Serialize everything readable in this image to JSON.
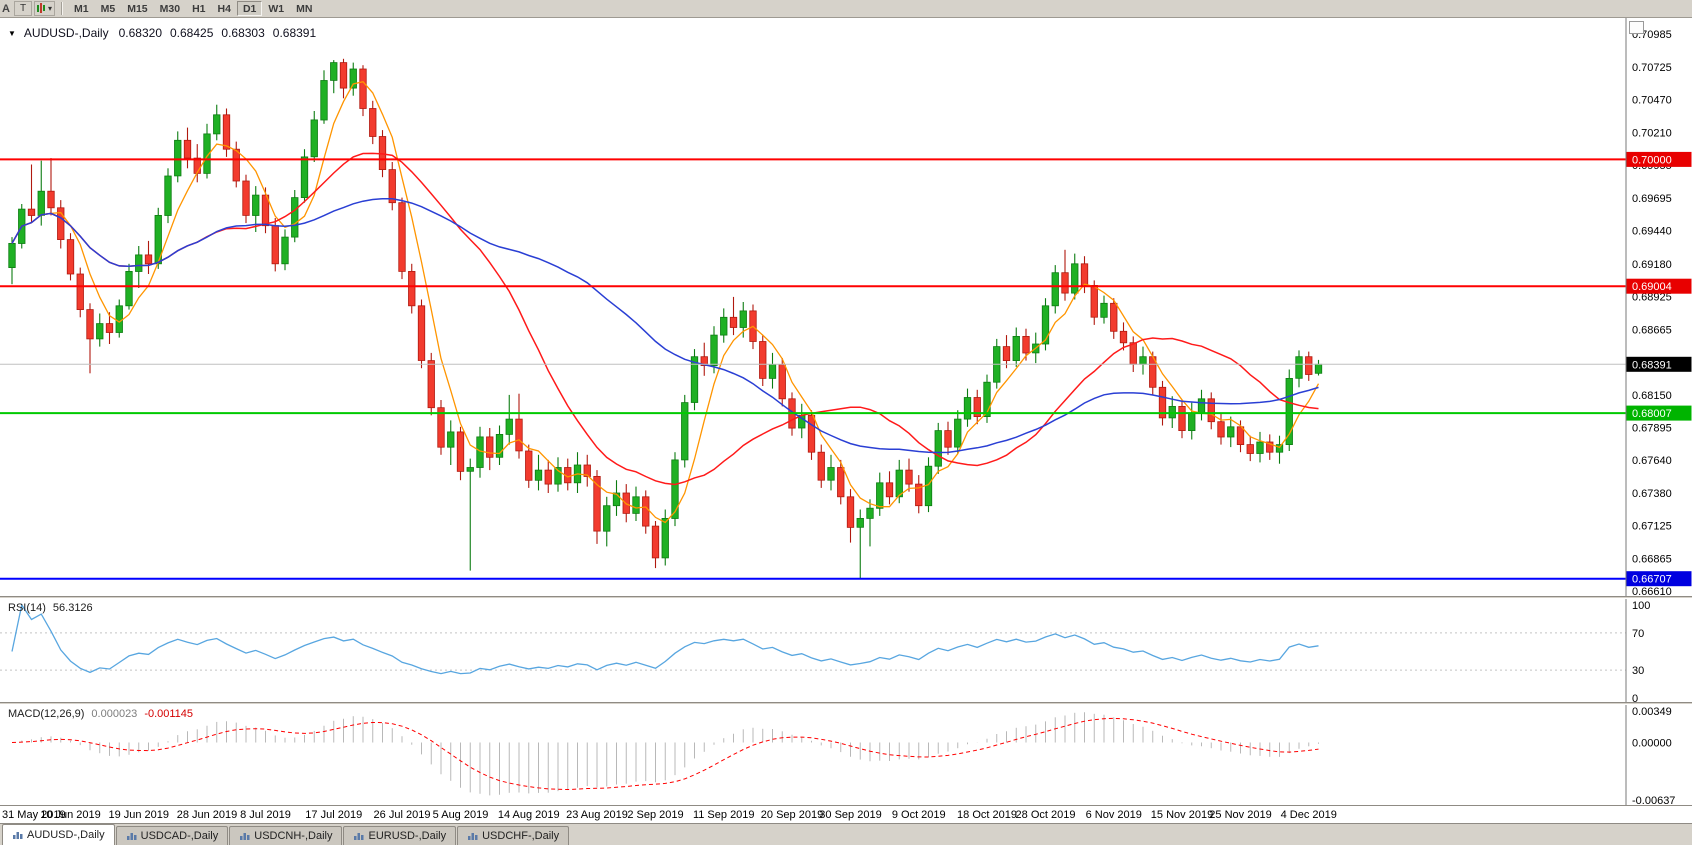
{
  "toolbar": {
    "left_label": "A",
    "t_button": "T",
    "dropdown_glyph": "▾",
    "timeframes": [
      "M1",
      "M5",
      "M15",
      "M30",
      "H1",
      "H4",
      "D1",
      "W1",
      "MN"
    ],
    "active_timeframe": "D1"
  },
  "chart_header": {
    "collapse_glyph": "▼",
    "symbol": "AUDUSD-,Daily",
    "open": "0.68320",
    "high": "0.68425",
    "low": "0.68303",
    "close": "0.68391"
  },
  "price_axis": {
    "labels": [
      "0.70985",
      "0.70725",
      "0.70470",
      "0.70210",
      "0.69955",
      "0.69695",
      "0.69440",
      "0.69180",
      "0.68925",
      "0.68665",
      "0.68405",
      "0.68150",
      "0.67895",
      "0.67640",
      "0.67380",
      "0.67125",
      "0.66865",
      "0.66610"
    ]
  },
  "hlines": [
    {
      "price": 0.7,
      "label": "0.70000",
      "tag_color": "#e80000",
      "line_color": "#ff0000",
      "line_width": 2
    },
    {
      "price": 0.69004,
      "label": "0.69004",
      "tag_color": "#e80000",
      "line_color": "#ff0000",
      "line_width": 2
    },
    {
      "price": 0.68007,
      "label": "0.68007",
      "tag_color": "#00b400",
      "line_color": "#00ca00",
      "line_width": 2
    },
    {
      "price": 0.66707,
      "label": "0.66707",
      "tag_color": "#0000e0",
      "line_color": "#0000ff",
      "line_width": 2
    },
    {
      "price": 0.68391,
      "label": "0.68391",
      "tag_color": "#000000",
      "line_color": "#c0c0c0",
      "line_width": 1
    }
  ],
  "chart_data": {
    "type": "candlestick",
    "symbol": "AUDUSD",
    "timeframe": "Daily",
    "title": "AUDUSD-,Daily",
    "price_range": [
      0.6661,
      0.70985
    ],
    "up_color": "#1fb024",
    "up_stroke": "#0c7c11",
    "down_color": "#f23b2e",
    "down_stroke": "#b0190f",
    "moving_averages": [
      {
        "name": "fast-lwma",
        "period": 5,
        "color": "#ff9500",
        "width": 1.3
      },
      {
        "name": "mid-ma",
        "period": 20,
        "color": "#ff1a1a",
        "width": 1.5
      },
      {
        "name": "slow-ma",
        "period": 44,
        "color": "#2a3fd4",
        "width": 1.5
      }
    ],
    "date_ticks": [
      {
        "i": 0,
        "label": "31 May 2019"
      },
      {
        "i": 6,
        "label": "10 Jun 2019"
      },
      {
        "i": 13,
        "label": "19 Jun 2019"
      },
      {
        "i": 20,
        "label": "28 Jun 2019"
      },
      {
        "i": 26,
        "label": "8 Jul 2019"
      },
      {
        "i": 33,
        "label": "17 Jul 2019"
      },
      {
        "i": 40,
        "label": "26 Jul 2019"
      },
      {
        "i": 46,
        "label": "5 Aug 2019"
      },
      {
        "i": 53,
        "label": "14 Aug 2019"
      },
      {
        "i": 60,
        "label": "23 Aug 2019"
      },
      {
        "i": 66,
        "label": "2 Sep 2019"
      },
      {
        "i": 73,
        "label": "11 Sep 2019"
      },
      {
        "i": 80,
        "label": "20 Sep 2019"
      },
      {
        "i": 86,
        "label": "30 Sep 2019"
      },
      {
        "i": 93,
        "label": "9 Oct 2019"
      },
      {
        "i": 100,
        "label": "18 Oct 2019"
      },
      {
        "i": 106,
        "label": "28 Oct 2019"
      },
      {
        "i": 113,
        "label": "6 Nov 2019"
      },
      {
        "i": 120,
        "label": "15 Nov 2019"
      },
      {
        "i": 126,
        "label": "25 Nov 2019"
      },
      {
        "i": 133,
        "label": "4 Dec 2019"
      }
    ],
    "ohlc": [
      [
        0.6915,
        0.6939,
        0.6902,
        0.6934
      ],
      [
        0.6934,
        0.6965,
        0.693,
        0.6961
      ],
      [
        0.6961,
        0.6996,
        0.695,
        0.6956
      ],
      [
        0.6956,
        0.6999,
        0.6948,
        0.6975
      ],
      [
        0.6975,
        0.7001,
        0.6956,
        0.6962
      ],
      [
        0.6962,
        0.6968,
        0.693,
        0.6937
      ],
      [
        0.6937,
        0.6942,
        0.6905,
        0.691
      ],
      [
        0.691,
        0.6915,
        0.6876,
        0.6882
      ],
      [
        0.6882,
        0.6887,
        0.6832,
        0.6859
      ],
      [
        0.6859,
        0.6879,
        0.6853,
        0.6871
      ],
      [
        0.6871,
        0.688,
        0.6855,
        0.6864
      ],
      [
        0.6864,
        0.689,
        0.686,
        0.6885
      ],
      [
        0.6885,
        0.6918,
        0.6882,
        0.6912
      ],
      [
        0.6912,
        0.6932,
        0.6899,
        0.6925
      ],
      [
        0.6925,
        0.6936,
        0.691,
        0.6918
      ],
      [
        0.6918,
        0.6962,
        0.6914,
        0.6956
      ],
      [
        0.6956,
        0.6993,
        0.695,
        0.6987
      ],
      [
        0.6987,
        0.7022,
        0.6982,
        0.7015
      ],
      [
        0.7015,
        0.7025,
        0.6993,
        0.7001
      ],
      [
        0.7001,
        0.7012,
        0.6982,
        0.6989
      ],
      [
        0.6989,
        0.7028,
        0.6985,
        0.702
      ],
      [
        0.702,
        0.7043,
        0.7015,
        0.7035
      ],
      [
        0.7035,
        0.704,
        0.7002,
        0.7008
      ],
      [
        0.7008,
        0.7014,
        0.6978,
        0.6983
      ],
      [
        0.6983,
        0.6988,
        0.695,
        0.6956
      ],
      [
        0.6956,
        0.6979,
        0.6943,
        0.6972
      ],
      [
        0.6972,
        0.6978,
        0.6942,
        0.6948
      ],
      [
        0.6948,
        0.6954,
        0.6912,
        0.6918
      ],
      [
        0.6918,
        0.6945,
        0.6913,
        0.6939
      ],
      [
        0.6939,
        0.6976,
        0.6935,
        0.697
      ],
      [
        0.697,
        0.7008,
        0.6966,
        0.7002
      ],
      [
        0.7002,
        0.7038,
        0.6998,
        0.7031
      ],
      [
        0.7031,
        0.707,
        0.7028,
        0.7062
      ],
      [
        0.7062,
        0.7078,
        0.7052,
        0.7076
      ],
      [
        0.7076,
        0.7079,
        0.7048,
        0.7056
      ],
      [
        0.7056,
        0.7076,
        0.705,
        0.7071
      ],
      [
        0.7071,
        0.7074,
        0.7034,
        0.704
      ],
      [
        0.704,
        0.7046,
        0.7012,
        0.7018
      ],
      [
        0.7018,
        0.7023,
        0.6986,
        0.6992
      ],
      [
        0.6992,
        0.6998,
        0.696,
        0.6966
      ],
      [
        0.6966,
        0.697,
        0.6906,
        0.6912
      ],
      [
        0.6912,
        0.6918,
        0.6879,
        0.6885
      ],
      [
        0.6885,
        0.689,
        0.6836,
        0.6842
      ],
      [
        0.6842,
        0.6848,
        0.6799,
        0.6805
      ],
      [
        0.6805,
        0.6811,
        0.6768,
        0.6774
      ],
      [
        0.6774,
        0.6795,
        0.676,
        0.6786
      ],
      [
        0.6786,
        0.679,
        0.6748,
        0.6755
      ],
      [
        0.6755,
        0.6765,
        0.6677,
        0.6758
      ],
      [
        0.6758,
        0.679,
        0.675,
        0.6782
      ],
      [
        0.6782,
        0.6789,
        0.6756,
        0.6766
      ],
      [
        0.6766,
        0.6791,
        0.676,
        0.6784
      ],
      [
        0.6784,
        0.6815,
        0.6776,
        0.6796
      ],
      [
        0.6796,
        0.6816,
        0.6765,
        0.6771
      ],
      [
        0.6771,
        0.6776,
        0.6742,
        0.6748
      ],
      [
        0.6748,
        0.6768,
        0.674,
        0.6756
      ],
      [
        0.6756,
        0.6764,
        0.6738,
        0.6745
      ],
      [
        0.6745,
        0.6766,
        0.6739,
        0.6758
      ],
      [
        0.6758,
        0.6765,
        0.674,
        0.6746
      ],
      [
        0.6746,
        0.677,
        0.6738,
        0.676
      ],
      [
        0.676,
        0.6768,
        0.6743,
        0.6751
      ],
      [
        0.6751,
        0.6756,
        0.6698,
        0.6708
      ],
      [
        0.6708,
        0.6735,
        0.6696,
        0.6728
      ],
      [
        0.6728,
        0.6748,
        0.672,
        0.6738
      ],
      [
        0.6738,
        0.6745,
        0.6715,
        0.6722
      ],
      [
        0.6722,
        0.6743,
        0.6716,
        0.6735
      ],
      [
        0.6735,
        0.674,
        0.6706,
        0.6712
      ],
      [
        0.6712,
        0.6716,
        0.6679,
        0.6687
      ],
      [
        0.6687,
        0.6725,
        0.6681,
        0.6718
      ],
      [
        0.6718,
        0.677,
        0.6712,
        0.6764
      ],
      [
        0.6764,
        0.6815,
        0.6758,
        0.6809
      ],
      [
        0.6809,
        0.6851,
        0.6803,
        0.6845
      ],
      [
        0.6845,
        0.6856,
        0.683,
        0.6838
      ],
      [
        0.6838,
        0.6869,
        0.6832,
        0.6862
      ],
      [
        0.6862,
        0.6883,
        0.6856,
        0.6876
      ],
      [
        0.6876,
        0.6892,
        0.6862,
        0.6868
      ],
      [
        0.6868,
        0.6888,
        0.686,
        0.6881
      ],
      [
        0.6881,
        0.6886,
        0.6851,
        0.6857
      ],
      [
        0.6857,
        0.6862,
        0.6822,
        0.6828
      ],
      [
        0.6828,
        0.6848,
        0.682,
        0.6839
      ],
      [
        0.6839,
        0.6844,
        0.6806,
        0.6812
      ],
      [
        0.6812,
        0.6817,
        0.6783,
        0.6789
      ],
      [
        0.6789,
        0.6808,
        0.6781,
        0.6799
      ],
      [
        0.6799,
        0.6803,
        0.6764,
        0.677
      ],
      [
        0.677,
        0.6776,
        0.6742,
        0.6748
      ],
      [
        0.6748,
        0.6768,
        0.674,
        0.6758
      ],
      [
        0.6758,
        0.6764,
        0.6729,
        0.6735
      ],
      [
        0.6735,
        0.6741,
        0.6699,
        0.6711
      ],
      [
        0.6711,
        0.6725,
        0.667,
        0.6718
      ],
      [
        0.6718,
        0.6733,
        0.6696,
        0.6726
      ],
      [
        0.6726,
        0.6754,
        0.672,
        0.6746
      ],
      [
        0.6746,
        0.6755,
        0.6729,
        0.6735
      ],
      [
        0.6735,
        0.6764,
        0.673,
        0.6756
      ],
      [
        0.6756,
        0.6765,
        0.6739,
        0.6745
      ],
      [
        0.6745,
        0.6752,
        0.6722,
        0.6728
      ],
      [
        0.6728,
        0.6766,
        0.6723,
        0.6759
      ],
      [
        0.6759,
        0.6793,
        0.6753,
        0.6787
      ],
      [
        0.6787,
        0.6794,
        0.6768,
        0.6774
      ],
      [
        0.6774,
        0.6803,
        0.6769,
        0.6796
      ],
      [
        0.6796,
        0.682,
        0.679,
        0.6813
      ],
      [
        0.6813,
        0.6819,
        0.6792,
        0.6798
      ],
      [
        0.6798,
        0.6831,
        0.6793,
        0.6825
      ],
      [
        0.6825,
        0.6859,
        0.682,
        0.6853
      ],
      [
        0.6853,
        0.6862,
        0.6836,
        0.6842
      ],
      [
        0.6842,
        0.6868,
        0.6837,
        0.6861
      ],
      [
        0.6861,
        0.6867,
        0.6842,
        0.6848
      ],
      [
        0.6848,
        0.6864,
        0.684,
        0.6855
      ],
      [
        0.6855,
        0.6891,
        0.685,
        0.6885
      ],
      [
        0.6885,
        0.6917,
        0.6879,
        0.6911
      ],
      [
        0.6911,
        0.6929,
        0.6889,
        0.6895
      ],
      [
        0.6895,
        0.6926,
        0.689,
        0.6918
      ],
      [
        0.6918,
        0.6924,
        0.6895,
        0.6901
      ],
      [
        0.6901,
        0.6905,
        0.687,
        0.6876
      ],
      [
        0.6876,
        0.6893,
        0.6871,
        0.6887
      ],
      [
        0.6887,
        0.6891,
        0.6859,
        0.6865
      ],
      [
        0.6865,
        0.6872,
        0.685,
        0.6856
      ],
      [
        0.6856,
        0.6861,
        0.6833,
        0.6839
      ],
      [
        0.6839,
        0.6853,
        0.6831,
        0.6845
      ],
      [
        0.6845,
        0.6849,
        0.6815,
        0.6821
      ],
      [
        0.6821,
        0.6826,
        0.6791,
        0.6797
      ],
      [
        0.6797,
        0.6814,
        0.6789,
        0.6806
      ],
      [
        0.6806,
        0.6811,
        0.6781,
        0.6787
      ],
      [
        0.6787,
        0.6809,
        0.678,
        0.6801
      ],
      [
        0.6801,
        0.6819,
        0.6795,
        0.6812
      ],
      [
        0.6812,
        0.6817,
        0.6788,
        0.6794
      ],
      [
        0.6794,
        0.68,
        0.6776,
        0.6782
      ],
      [
        0.6782,
        0.6798,
        0.6774,
        0.679
      ],
      [
        0.679,
        0.6795,
        0.677,
        0.6776
      ],
      [
        0.6776,
        0.6783,
        0.6763,
        0.6769
      ],
      [
        0.6769,
        0.6786,
        0.6762,
        0.6778
      ],
      [
        0.6778,
        0.6784,
        0.6764,
        0.677
      ],
      [
        0.677,
        0.6783,
        0.6761,
        0.6776
      ],
      [
        0.6776,
        0.6835,
        0.6771,
        0.6828
      ],
      [
        0.6828,
        0.685,
        0.6821,
        0.6845
      ],
      [
        0.6845,
        0.6849,
        0.6826,
        0.6831
      ],
      [
        0.6832,
        0.68425,
        0.68303,
        0.68391
      ]
    ]
  },
  "rsi": {
    "label": "RSI(14)",
    "value": "56.3126",
    "period": 14,
    "levels": [
      100,
      70,
      30,
      0
    ],
    "dash_levels": [
      70,
      30
    ],
    "color": "#58a6e0"
  },
  "macd": {
    "label": "MACD(12,26,9)",
    "main_value": "0.000023",
    "signal_value": "-0.001145",
    "axis_labels": [
      "0.00349",
      "0.00000",
      "-0.00637"
    ],
    "range": [
      -0.00637,
      0.00349
    ],
    "hist_color": "#b8b8b8",
    "signal_color": "#ff0000"
  },
  "tabs": [
    {
      "label": "AUDUSD-,Daily",
      "active": true
    },
    {
      "label": "USDCAD-,Daily",
      "active": false
    },
    {
      "label": "USDCNH-,Daily",
      "active": false
    },
    {
      "label": "EURUSD-,Daily",
      "active": false
    },
    {
      "label": "USDCHF-,Daily",
      "active": false
    }
  ]
}
